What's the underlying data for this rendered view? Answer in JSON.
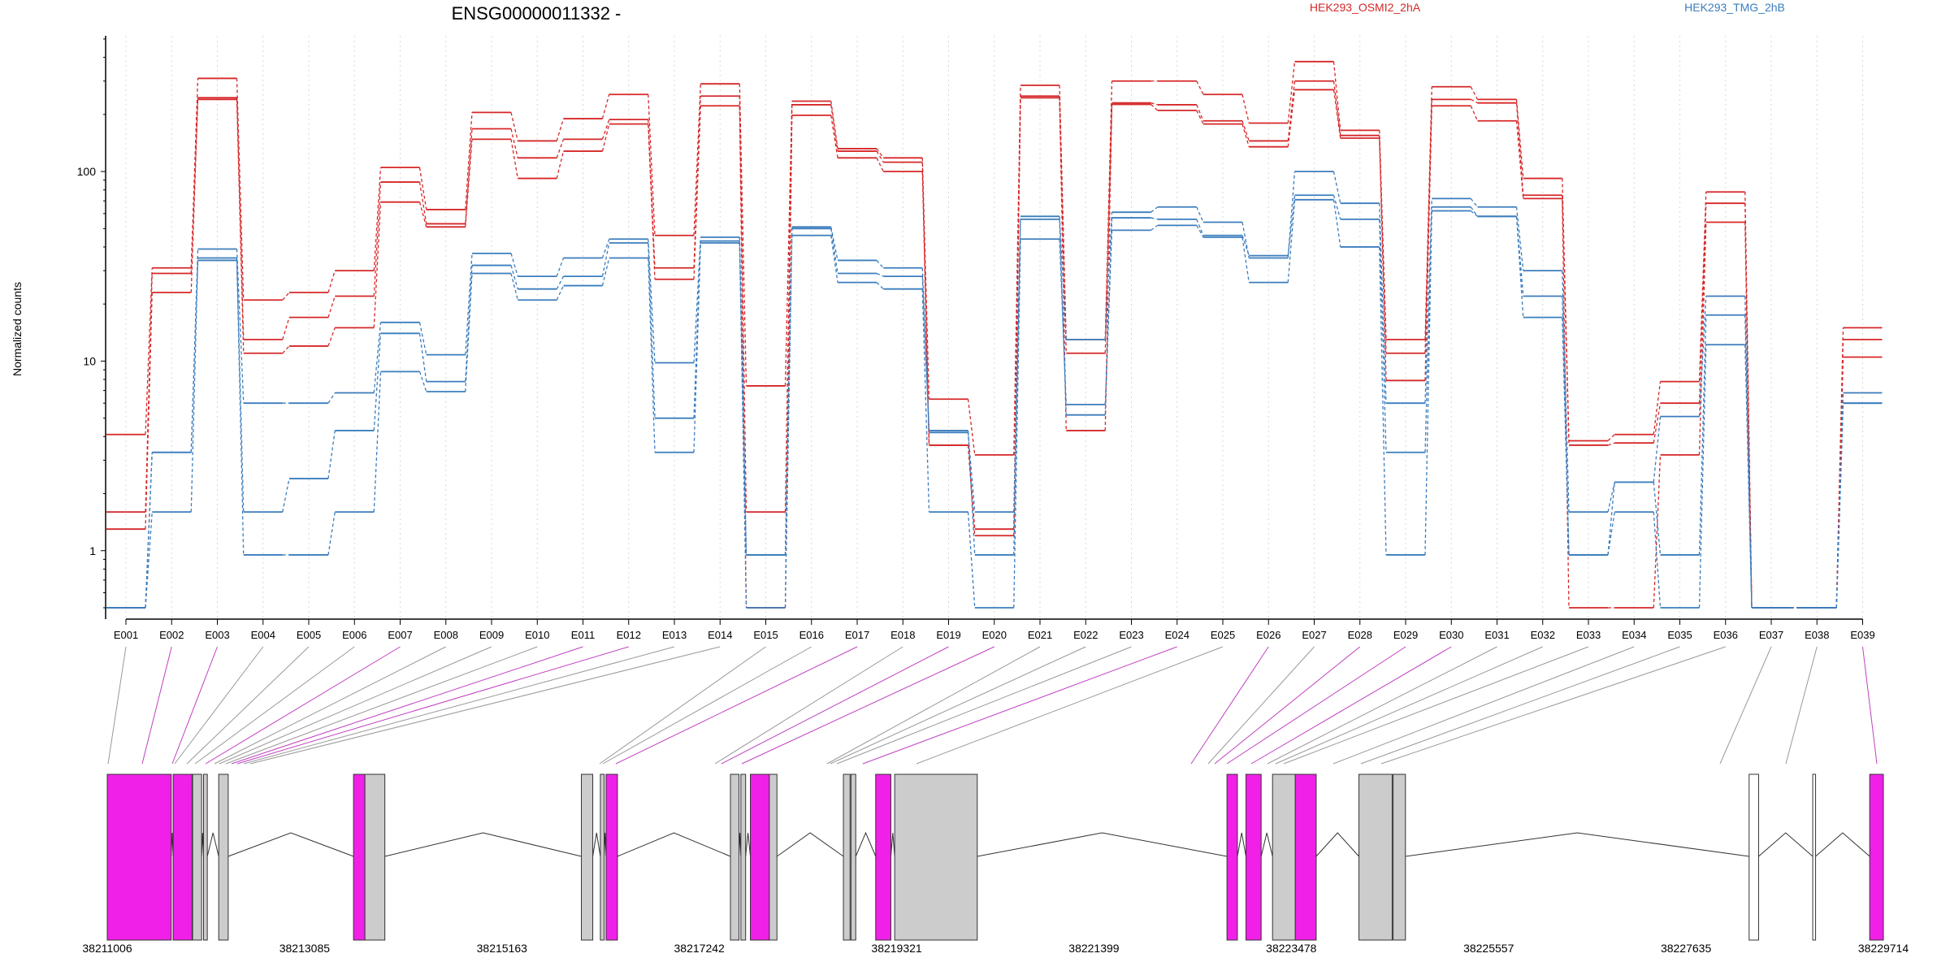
{
  "chart_data": {
    "type": "line",
    "title": "ENSG00000011332 -",
    "xlabel": "",
    "ylabel": "Normalized counts",
    "yscale": "log",
    "ylim": [
      0.5,
      500
    ],
    "yticks": [
      1,
      10,
      100
    ],
    "ytick_labels": [
      "1",
      "10",
      "100"
    ],
    "grid": "vertical dotted at exon bins",
    "legend": [
      "HEK293_OSMI2_2hA",
      "HEK293_TMG_2hB"
    ],
    "categories": [
      "E001",
      "E002",
      "E003",
      "E004",
      "E005",
      "E006",
      "E007",
      "E008",
      "E009",
      "E010",
      "E011",
      "E012",
      "E013",
      "E014",
      "E015",
      "E016",
      "E017",
      "E018",
      "E019",
      "E020",
      "E021",
      "E022",
      "E023",
      "E024",
      "E025",
      "E026",
      "E027",
      "E028",
      "E029",
      "E030",
      "E031",
      "E032",
      "E033",
      "E034",
      "E035",
      "E036",
      "E037",
      "E038",
      "E039"
    ],
    "series": [
      {
        "group": "HEK293_OSMI2_2hA",
        "color": "#d62728",
        "values": [
          4.1,
          31,
          310,
          21,
          23,
          30,
          105,
          63,
          205,
          145,
          190,
          255,
          46,
          290,
          7.4,
          235,
          132,
          118,
          6.3,
          3.2,
          285,
          13,
          300,
          300,
          255,
          180,
          380,
          165,
          13,
          280,
          240,
          92,
          3.8,
          4.1,
          7.8,
          78,
          0.5,
          0.5,
          15
        ]
      },
      {
        "group": "HEK293_OSMI2_2hA",
        "color": "#d62728",
        "values": [
          1.6,
          29,
          240,
          13,
          17,
          22,
          88,
          53,
          168,
          118,
          148,
          188,
          31,
          250,
          1.6,
          225,
          128,
          112,
          3.6,
          1.2,
          245,
          11,
          230,
          225,
          185,
          145,
          300,
          155,
          11,
          240,
          230,
          75,
          3.6,
          3.7,
          6,
          68,
          0.5,
          0.5,
          13
        ]
      },
      {
        "group": "HEK293_OSMI2_2hA",
        "color": "#d62728",
        "values": [
          1.3,
          23,
          245,
          11,
          12,
          15,
          69,
          51,
          148,
          92,
          128,
          178,
          27,
          222,
          0.5,
          198,
          118,
          100,
          3.6,
          1.3,
          250,
          4.3,
          226,
          210,
          178,
          135,
          270,
          150,
          7.9,
          222,
          185,
          72,
          0.5,
          0.5,
          3.2,
          54,
          0.5,
          0.5,
          10.5
        ]
      },
      {
        "group": "HEK293_TMG_2hB",
        "color": "#3b7dbd",
        "values": [
          0.5,
          3.3,
          39,
          6,
          6,
          6.8,
          16,
          10.8,
          37,
          28,
          35,
          44,
          9.8,
          45,
          0.95,
          51,
          34,
          31,
          4.2,
          1.6,
          58,
          13,
          61,
          65,
          54,
          35,
          100,
          68,
          6,
          72,
          65,
          30,
          1.6,
          2.3,
          5.1,
          22,
          0.5,
          0.5,
          6.8
        ]
      },
      {
        "group": "HEK293_TMG_2hB",
        "color": "#3b7dbd",
        "values": [
          0.5,
          3.3,
          35,
          1.6,
          2.4,
          4.3,
          14,
          7.8,
          32,
          24,
          28,
          42,
          5,
          43,
          0.95,
          50,
          29,
          28,
          4.3,
          0.95,
          56,
          5.2,
          57,
          56,
          46,
          36,
          75,
          56,
          3.3,
          65,
          58,
          22,
          0.95,
          2.3,
          0.95,
          17.5,
          0.5,
          0.5,
          6
        ]
      },
      {
        "group": "HEK293_TMG_2hB",
        "color": "#3b7dbd",
        "values": [
          0.5,
          1.6,
          34,
          0.95,
          0.95,
          1.6,
          8.8,
          6.9,
          29,
          21,
          25,
          35,
          3.3,
          42,
          0.5,
          46,
          26,
          24,
          1.6,
          0.5,
          44,
          5.9,
          49,
          52,
          45,
          26,
          71,
          40,
          0.95,
          62,
          58,
          17,
          0.95,
          1.6,
          0.5,
          12.2,
          0.5,
          0.5,
          6
        ]
      }
    ],
    "gene_model": {
      "coordinate_labels": [
        "38211006",
        "38213085",
        "38215163",
        "38217242",
        "38219321",
        "38221399",
        "38223478",
        "38225557",
        "38227635",
        "38229714"
      ],
      "range": [
        38211006,
        38229714
      ],
      "highlight_color": "#f020e8",
      "exon_color": "#cccccc",
      "exons": [
        [
          38211006,
          38211680,
          "hl"
        ],
        [
          38211700,
          38211900,
          "hl"
        ],
        [
          38211905,
          38212000,
          "ex"
        ],
        [
          38212020,
          38212060,
          "ex"
        ],
        [
          38212180,
          38212280,
          "ex"
        ],
        [
          38213600,
          38213720,
          "hl"
        ],
        [
          38213720,
          38213930,
          "ex"
        ],
        [
          38216000,
          38216120,
          "ex"
        ],
        [
          38216200,
          38216240,
          "ex"
        ],
        [
          38216260,
          38216380,
          "hl"
        ],
        [
          38217570,
          38217660,
          "ex"
        ],
        [
          38217680,
          38217730,
          "ex"
        ],
        [
          38217780,
          38217980,
          "hl"
        ],
        [
          38217980,
          38218060,
          "ex"
        ],
        [
          38218760,
          38218830,
          "ex"
        ],
        [
          38218840,
          38218890,
          "ex"
        ],
        [
          38219100,
          38219260,
          "hl"
        ],
        [
          38219300,
          38220170,
          "ex"
        ],
        [
          38222800,
          38222910,
          "hl"
        ],
        [
          38223000,
          38223160,
          "hl"
        ],
        [
          38223280,
          38223520,
          "ex"
        ],
        [
          38223520,
          38223740,
          "hl"
        ],
        [
          38224190,
          38224540,
          "ex"
        ],
        [
          38224550,
          38224680,
          "ex"
        ],
        [
          38228300,
          38228400,
          "open"
        ],
        [
          38228970,
          38229000,
          "open"
        ],
        [
          38229570,
          38229714,
          "hl"
        ]
      ],
      "links": [
        [
          0,
          "gray"
        ],
        [
          1,
          "hl"
        ],
        [
          2,
          "hl"
        ],
        [
          3,
          "gray"
        ],
        [
          4,
          "gray"
        ],
        [
          5,
          "gray"
        ],
        [
          6,
          "hl"
        ],
        [
          7,
          "gray"
        ],
        [
          8,
          "gray"
        ],
        [
          9,
          "gray"
        ],
        [
          10,
          "hl"
        ],
        [
          11,
          "hl"
        ],
        [
          12,
          "gray"
        ],
        [
          13,
          "gray"
        ],
        [
          14,
          "gray"
        ],
        [
          15,
          "gray"
        ],
        [
          16,
          "hl"
        ],
        [
          17,
          "gray"
        ],
        [
          18,
          "hl"
        ],
        [
          19,
          "hl"
        ],
        [
          20,
          "gray"
        ],
        [
          21,
          "gray"
        ],
        [
          22,
          "gray"
        ],
        [
          23,
          "hl"
        ],
        [
          24,
          "gray"
        ],
        [
          25,
          "hl"
        ],
        [
          26,
          "gray"
        ],
        [
          27,
          "hl"
        ],
        [
          28,
          "hl"
        ],
        [
          29,
          "hl"
        ],
        [
          30,
          "gray"
        ],
        [
          31,
          "gray"
        ],
        [
          32,
          "gray"
        ],
        [
          33,
          "gray"
        ],
        [
          34,
          "gray"
        ],
        [
          35,
          "gray"
        ],
        [
          36,
          "gray"
        ],
        [
          37,
          "gray"
        ],
        [
          38,
          "hl"
        ]
      ]
    }
  }
}
